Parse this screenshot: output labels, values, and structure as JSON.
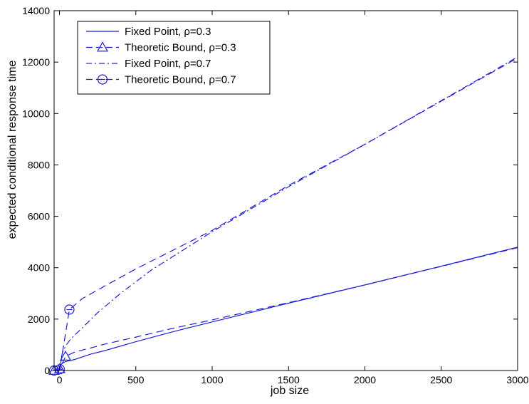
{
  "chart_data": {
    "type": "line",
    "xlabel": "job size",
    "ylabel": "expected conditional response time",
    "xlim": [
      -35,
      3000
    ],
    "ylim": [
      0,
      14000
    ],
    "x_ticks": [
      0,
      500,
      1000,
      1500,
      2000,
      2500,
      3000
    ],
    "y_ticks": [
      0,
      2000,
      4000,
      6000,
      8000,
      10000,
      12000,
      14000
    ],
    "legend_position": "top-left",
    "line_color": "#1f1fd6",
    "series": [
      {
        "name": "Fixed Point, ρ=0.3",
        "style": "solid",
        "marker": "none",
        "points": [
          [
            0,
            0
          ],
          [
            5,
            150
          ],
          [
            10,
            230
          ],
          [
            20,
            290
          ],
          [
            40,
            345
          ],
          [
            70,
            390
          ],
          [
            100,
            430
          ],
          [
            200,
            630
          ],
          [
            300,
            780
          ],
          [
            500,
            1120
          ],
          [
            750,
            1520
          ],
          [
            1000,
            1890
          ],
          [
            1500,
            2620
          ],
          [
            2000,
            3330
          ],
          [
            2500,
            4060
          ],
          [
            3000,
            4800
          ]
        ]
      },
      {
        "name": "Theoretic Bound, ρ=0.3",
        "style": "dashed",
        "marker": "triangle",
        "marker_points": [
          [
            -35,
            0
          ],
          [
            2,
            60
          ],
          [
            40,
            550
          ]
        ],
        "points": [
          [
            -35,
            0
          ],
          [
            2,
            60
          ],
          [
            40,
            550
          ],
          [
            100,
            720
          ],
          [
            200,
            870
          ],
          [
            300,
            1030
          ],
          [
            500,
            1300
          ],
          [
            750,
            1650
          ],
          [
            1000,
            1970
          ],
          [
            1500,
            2640
          ],
          [
            2000,
            3330
          ],
          [
            2500,
            4050
          ],
          [
            3000,
            4780
          ]
        ]
      },
      {
        "name": "Fixed Point, ρ=0.7",
        "style": "dashdot",
        "marker": "none",
        "points": [
          [
            0,
            0
          ],
          [
            5,
            250
          ],
          [
            10,
            450
          ],
          [
            20,
            700
          ],
          [
            40,
            950
          ],
          [
            70,
            1200
          ],
          [
            100,
            1380
          ],
          [
            150,
            1660
          ],
          [
            250,
            2250
          ],
          [
            400,
            3000
          ],
          [
            600,
            3900
          ],
          [
            1000,
            5400
          ],
          [
            1500,
            7150
          ],
          [
            2000,
            8800
          ],
          [
            2500,
            10500
          ],
          [
            3000,
            12200
          ]
        ]
      },
      {
        "name": "Theoretic Bound, ρ=0.7",
        "style": "dashed",
        "marker": "circle",
        "marker_points": [
          [
            -35,
            0
          ],
          [
            2,
            50
          ],
          [
            65,
            2370
          ]
        ],
        "points": [
          [
            -35,
            0
          ],
          [
            2,
            50
          ],
          [
            65,
            2370
          ],
          [
            150,
            2800
          ],
          [
            300,
            3300
          ],
          [
            500,
            3950
          ],
          [
            750,
            4700
          ],
          [
            1000,
            5450
          ],
          [
            1500,
            7200
          ],
          [
            2000,
            8800
          ],
          [
            2500,
            10480
          ],
          [
            3000,
            12160
          ]
        ]
      }
    ]
  }
}
